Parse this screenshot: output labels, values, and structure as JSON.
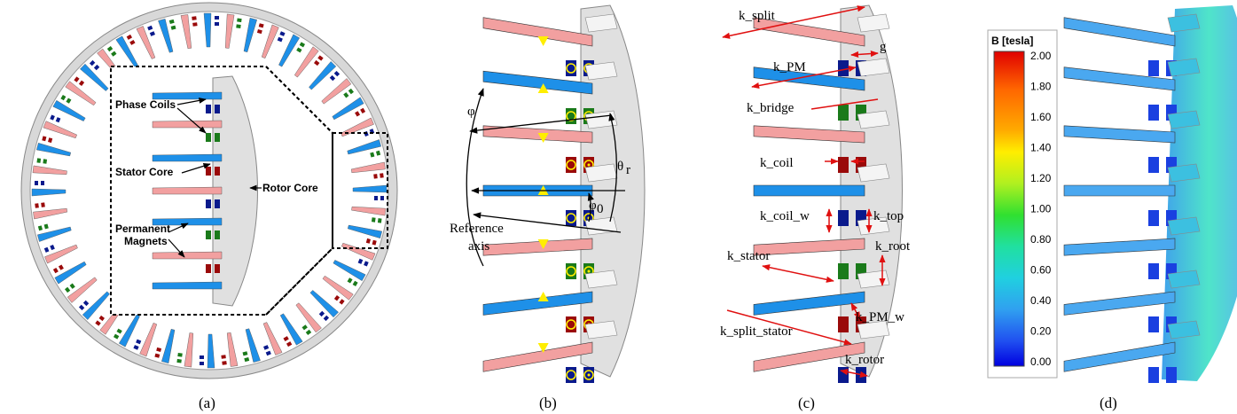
{
  "panel_a": {
    "labels": {
      "phase_coils": "Phase Coils",
      "stator_core": "Stator Core",
      "rotor_core": "Rotor Core",
      "permanent": "Permanent",
      "magnets": "Magnets"
    },
    "caption": "(a)"
  },
  "panel_b": {
    "labels": {
      "phi": "φ",
      "theta": "θ",
      "theta_sub": "r",
      "phi0": "φ",
      "phi0_sub": "0",
      "reference": "Reference",
      "axis": "axis"
    },
    "caption": "(b)"
  },
  "panel_c": {
    "labels": {
      "k_split": "k_split",
      "g": "g",
      "k_pm": "k_PM",
      "k_bridge": "k_bridge",
      "k_coil": "k_coil",
      "k_coil_w": "k_coil_w",
      "k_top": "k_top",
      "k_root": "k_root",
      "k_stator": "k_stator",
      "k_pm_w": "k_PM_w",
      "k_split_stator": "k_split_stator",
      "k_rotor": "k_rotor"
    },
    "caption": "(c)"
  },
  "panel_d": {
    "colorbar": {
      "title": "B [tesla]",
      "ticks": [
        "2.00",
        "1.80",
        "1.60",
        "1.40",
        "1.20",
        "1.00",
        "0.80",
        "0.60",
        "0.40",
        "0.20",
        "0.00"
      ]
    },
    "caption": "(d)"
  },
  "colors": {
    "magnet_blue": "#1e90e8",
    "magnet_pink": "#f2a0a0",
    "coil_navy": "#0a1a8c",
    "coil_green": "#1a7a1a",
    "coil_red": "#9a0a0a",
    "core_grey": "#e0e0e0",
    "arrow_red": "#e01010",
    "marker_yellow": "#ffee00"
  }
}
